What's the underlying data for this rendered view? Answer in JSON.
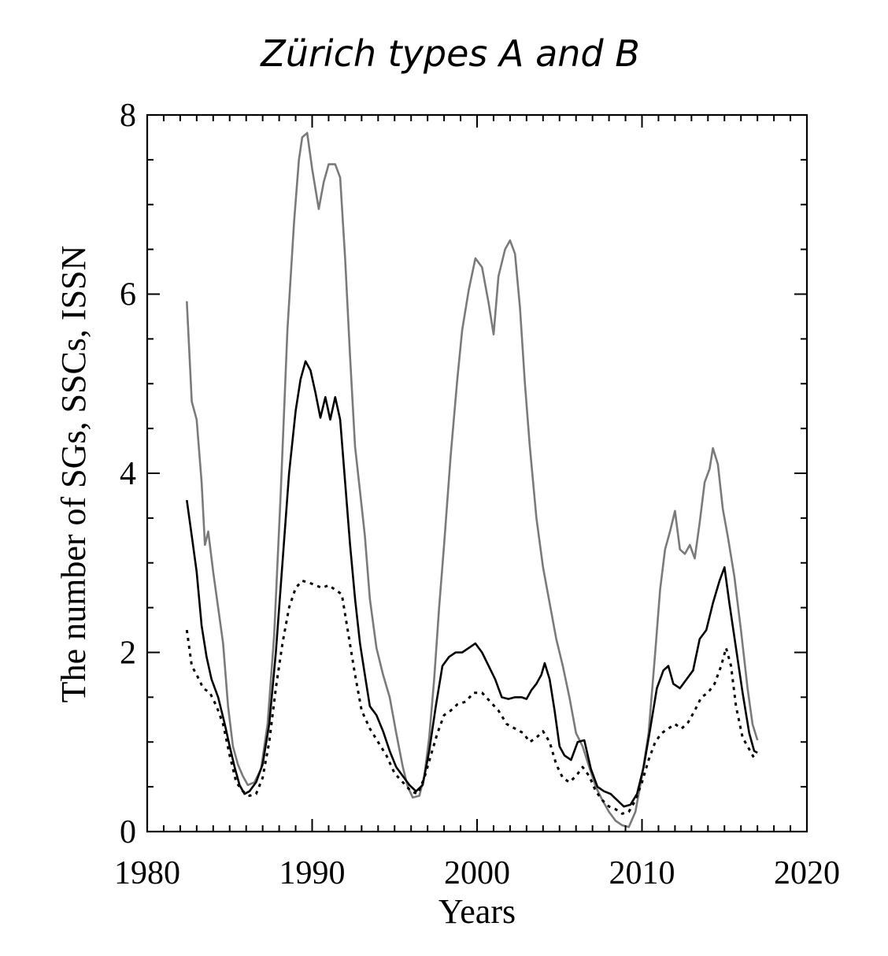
{
  "chart_data": {
    "type": "line",
    "title": "Zürich types A and B",
    "xlabel": "Years",
    "ylabel": "The number of SGs, SSCs, ISSN",
    "xlim": [
      1980,
      2020
    ],
    "ylim": [
      0,
      8
    ],
    "x_ticks": [
      "1980",
      "1990",
      "2000",
      "2010",
      "2020"
    ],
    "y_ticks": [
      "0",
      "2",
      "4",
      "6",
      "8"
    ],
    "grid": false,
    "legend": "none",
    "series": [
      {
        "style": "gray-solid",
        "color": "#7a7a7a",
        "points": [
          [
            1982.4,
            5.92
          ],
          [
            1982.7,
            4.8
          ],
          [
            1983.0,
            4.6
          ],
          [
            1983.3,
            3.9
          ],
          [
            1983.5,
            3.2
          ],
          [
            1983.7,
            3.35
          ],
          [
            1984.0,
            2.9
          ],
          [
            1984.3,
            2.5
          ],
          [
            1984.6,
            2.1
          ],
          [
            1984.9,
            1.4
          ],
          [
            1985.2,
            0.95
          ],
          [
            1985.5,
            0.75
          ],
          [
            1985.8,
            0.62
          ],
          [
            1986.1,
            0.52
          ],
          [
            1986.5,
            0.55
          ],
          [
            1986.9,
            0.7
          ],
          [
            1987.3,
            1.2
          ],
          [
            1987.7,
            2.2
          ],
          [
            1988.1,
            3.8
          ],
          [
            1988.5,
            5.6
          ],
          [
            1988.9,
            6.8
          ],
          [
            1989.2,
            7.5
          ],
          [
            1989.4,
            7.75
          ],
          [
            1989.7,
            7.8
          ],
          [
            1990.0,
            7.4
          ],
          [
            1990.4,
            6.95
          ],
          [
            1990.7,
            7.25
          ],
          [
            1991.0,
            7.45
          ],
          [
            1991.4,
            7.45
          ],
          [
            1991.7,
            7.3
          ],
          [
            1992.0,
            6.4
          ],
          [
            1992.3,
            5.3
          ],
          [
            1992.6,
            4.3
          ],
          [
            1992.9,
            3.8
          ],
          [
            1993.2,
            3.3
          ],
          [
            1993.5,
            2.6
          ],
          [
            1993.9,
            2.05
          ],
          [
            1994.3,
            1.75
          ],
          [
            1994.7,
            1.5
          ],
          [
            1995.1,
            1.1
          ],
          [
            1995.5,
            0.72
          ],
          [
            1995.8,
            0.5
          ],
          [
            1996.1,
            0.38
          ],
          [
            1996.5,
            0.4
          ],
          [
            1996.8,
            0.62
          ],
          [
            1997.1,
            1.05
          ],
          [
            1997.4,
            1.7
          ],
          [
            1997.7,
            2.5
          ],
          [
            1998.0,
            3.2
          ],
          [
            1998.4,
            4.2
          ],
          [
            1998.8,
            5.05
          ],
          [
            1999.1,
            5.6
          ],
          [
            1999.5,
            6.05
          ],
          [
            1999.9,
            6.4
          ],
          [
            2000.3,
            6.3
          ],
          [
            2000.7,
            5.9
          ],
          [
            2001.0,
            5.55
          ],
          [
            2001.3,
            6.2
          ],
          [
            2001.7,
            6.5
          ],
          [
            2002.0,
            6.6
          ],
          [
            2002.3,
            6.45
          ],
          [
            2002.6,
            5.85
          ],
          [
            2002.9,
            5.0
          ],
          [
            2003.2,
            4.3
          ],
          [
            2003.6,
            3.5
          ],
          [
            2004.0,
            2.95
          ],
          [
            2004.4,
            2.55
          ],
          [
            2004.8,
            2.15
          ],
          [
            2005.2,
            1.85
          ],
          [
            2005.6,
            1.5
          ],
          [
            2006.0,
            1.1
          ],
          [
            2006.4,
            0.95
          ],
          [
            2006.8,
            0.72
          ],
          [
            2007.2,
            0.5
          ],
          [
            2007.6,
            0.35
          ],
          [
            2008.0,
            0.22
          ],
          [
            2008.4,
            0.12
          ],
          [
            2008.8,
            0.07
          ],
          [
            2009.2,
            0.05
          ],
          [
            2009.6,
            0.22
          ],
          [
            2010.0,
            0.62
          ],
          [
            2010.4,
            1.1
          ],
          [
            2010.8,
            2.0
          ],
          [
            2011.1,
            2.7
          ],
          [
            2011.4,
            3.15
          ],
          [
            2011.7,
            3.35
          ],
          [
            2012.0,
            3.58
          ],
          [
            2012.3,
            3.15
          ],
          [
            2012.6,
            3.1
          ],
          [
            2012.9,
            3.2
          ],
          [
            2013.2,
            3.05
          ],
          [
            2013.5,
            3.45
          ],
          [
            2013.8,
            3.9
          ],
          [
            2014.1,
            4.05
          ],
          [
            2014.3,
            4.28
          ],
          [
            2014.6,
            4.1
          ],
          [
            2014.9,
            3.6
          ],
          [
            2015.2,
            3.3
          ],
          [
            2015.6,
            2.85
          ],
          [
            2016.0,
            2.25
          ],
          [
            2016.4,
            1.6
          ],
          [
            2016.7,
            1.2
          ],
          [
            2017.0,
            1.02
          ]
        ]
      },
      {
        "style": "black-solid",
        "color": "#000000",
        "points": [
          [
            1982.4,
            3.7
          ],
          [
            1982.7,
            3.3
          ],
          [
            1983.0,
            2.9
          ],
          [
            1983.3,
            2.3
          ],
          [
            1983.6,
            1.95
          ],
          [
            1983.9,
            1.7
          ],
          [
            1984.3,
            1.5
          ],
          [
            1984.7,
            1.2
          ],
          [
            1985.0,
            0.95
          ],
          [
            1985.3,
            0.72
          ],
          [
            1985.6,
            0.52
          ],
          [
            1985.9,
            0.42
          ],
          [
            1986.2,
            0.45
          ],
          [
            1986.6,
            0.55
          ],
          [
            1987.0,
            0.75
          ],
          [
            1987.4,
            1.2
          ],
          [
            1987.8,
            2.0
          ],
          [
            1988.2,
            3.0
          ],
          [
            1988.6,
            4.0
          ],
          [
            1989.0,
            4.7
          ],
          [
            1989.3,
            5.05
          ],
          [
            1989.6,
            5.25
          ],
          [
            1989.9,
            5.15
          ],
          [
            1990.2,
            4.9
          ],
          [
            1990.5,
            4.62
          ],
          [
            1990.8,
            4.85
          ],
          [
            1991.1,
            4.6
          ],
          [
            1991.4,
            4.85
          ],
          [
            1991.7,
            4.6
          ],
          [
            1992.0,
            3.9
          ],
          [
            1992.3,
            3.2
          ],
          [
            1992.6,
            2.6
          ],
          [
            1992.9,
            2.1
          ],
          [
            1993.2,
            1.75
          ],
          [
            1993.5,
            1.4
          ],
          [
            1993.9,
            1.3
          ],
          [
            1994.3,
            1.12
          ],
          [
            1994.7,
            0.9
          ],
          [
            1995.1,
            0.72
          ],
          [
            1995.5,
            0.62
          ],
          [
            1995.9,
            0.52
          ],
          [
            1996.3,
            0.45
          ],
          [
            1996.7,
            0.52
          ],
          [
            1997.1,
            0.9
          ],
          [
            1997.5,
            1.4
          ],
          [
            1997.9,
            1.85
          ],
          [
            1998.3,
            1.95
          ],
          [
            1998.7,
            2.0
          ],
          [
            1999.1,
            2.0
          ],
          [
            1999.5,
            2.05
          ],
          [
            1999.9,
            2.1
          ],
          [
            2000.3,
            2.0
          ],
          [
            2000.7,
            1.85
          ],
          [
            2001.1,
            1.7
          ],
          [
            2001.5,
            1.5
          ],
          [
            2001.9,
            1.48
          ],
          [
            2002.3,
            1.5
          ],
          [
            2002.7,
            1.5
          ],
          [
            2003.0,
            1.48
          ],
          [
            2003.3,
            1.58
          ],
          [
            2003.6,
            1.65
          ],
          [
            2003.9,
            1.75
          ],
          [
            2004.1,
            1.88
          ],
          [
            2004.4,
            1.7
          ],
          [
            2004.7,
            1.35
          ],
          [
            2005.0,
            0.95
          ],
          [
            2005.3,
            0.85
          ],
          [
            2005.7,
            0.8
          ],
          [
            2006.1,
            1.0
          ],
          [
            2006.5,
            1.02
          ],
          [
            2006.9,
            0.7
          ],
          [
            2007.3,
            0.5
          ],
          [
            2007.7,
            0.45
          ],
          [
            2008.1,
            0.42
          ],
          [
            2008.5,
            0.35
          ],
          [
            2008.9,
            0.28
          ],
          [
            2009.3,
            0.3
          ],
          [
            2009.7,
            0.42
          ],
          [
            2010.1,
            0.72
          ],
          [
            2010.5,
            1.15
          ],
          [
            2010.9,
            1.6
          ],
          [
            2011.3,
            1.8
          ],
          [
            2011.6,
            1.85
          ],
          [
            2011.9,
            1.65
          ],
          [
            2012.3,
            1.6
          ],
          [
            2012.7,
            1.7
          ],
          [
            2013.1,
            1.8
          ],
          [
            2013.5,
            2.15
          ],
          [
            2013.9,
            2.25
          ],
          [
            2014.3,
            2.55
          ],
          [
            2014.7,
            2.8
          ],
          [
            2015.0,
            2.95
          ],
          [
            2015.3,
            2.55
          ],
          [
            2015.7,
            2.05
          ],
          [
            2016.1,
            1.55
          ],
          [
            2016.5,
            1.1
          ],
          [
            2016.8,
            0.9
          ],
          [
            2017.0,
            0.88
          ]
        ]
      },
      {
        "style": "black-dotted",
        "color": "#000000",
        "points": [
          [
            1982.4,
            2.25
          ],
          [
            1982.7,
            1.85
          ],
          [
            1983.0,
            1.75
          ],
          [
            1983.4,
            1.6
          ],
          [
            1983.8,
            1.55
          ],
          [
            1984.2,
            1.4
          ],
          [
            1984.6,
            1.2
          ],
          [
            1985.0,
            0.85
          ],
          [
            1985.4,
            0.55
          ],
          [
            1985.8,
            0.45
          ],
          [
            1986.2,
            0.4
          ],
          [
            1986.6,
            0.42
          ],
          [
            1987.0,
            0.6
          ],
          [
            1987.4,
            1.0
          ],
          [
            1987.8,
            1.6
          ],
          [
            1988.2,
            2.1
          ],
          [
            1988.6,
            2.5
          ],
          [
            1989.0,
            2.72
          ],
          [
            1989.4,
            2.8
          ],
          [
            1989.8,
            2.78
          ],
          [
            1990.2,
            2.75
          ],
          [
            1990.6,
            2.72
          ],
          [
            1991.0,
            2.75
          ],
          [
            1991.4,
            2.7
          ],
          [
            1991.8,
            2.65
          ],
          [
            1992.2,
            2.2
          ],
          [
            1992.6,
            1.75
          ],
          [
            1993.0,
            1.35
          ],
          [
            1993.5,
            1.15
          ],
          [
            1994.0,
            1.0
          ],
          [
            1994.5,
            0.85
          ],
          [
            1995.0,
            0.65
          ],
          [
            1995.5,
            0.55
          ],
          [
            1996.0,
            0.45
          ],
          [
            1996.4,
            0.42
          ],
          [
            1996.8,
            0.6
          ],
          [
            1997.2,
            0.85
          ],
          [
            1997.6,
            1.1
          ],
          [
            1998.0,
            1.3
          ],
          [
            1998.4,
            1.35
          ],
          [
            1998.8,
            1.42
          ],
          [
            1999.3,
            1.45
          ],
          [
            1999.8,
            1.55
          ],
          [
            2000.3,
            1.55
          ],
          [
            2000.8,
            1.45
          ],
          [
            2001.3,
            1.35
          ],
          [
            2001.8,
            1.2
          ],
          [
            2002.3,
            1.15
          ],
          [
            2002.8,
            1.1
          ],
          [
            2003.2,
            1.0
          ],
          [
            2003.6,
            1.05
          ],
          [
            2004.0,
            1.12
          ],
          [
            2004.4,
            1.0
          ],
          [
            2004.8,
            0.75
          ],
          [
            2005.2,
            0.6
          ],
          [
            2005.6,
            0.55
          ],
          [
            2006.0,
            0.62
          ],
          [
            2006.4,
            0.72
          ],
          [
            2006.8,
            0.62
          ],
          [
            2007.2,
            0.45
          ],
          [
            2007.6,
            0.35
          ],
          [
            2008.0,
            0.28
          ],
          [
            2008.4,
            0.25
          ],
          [
            2008.8,
            0.2
          ],
          [
            2009.2,
            0.22
          ],
          [
            2009.6,
            0.35
          ],
          [
            2010.0,
            0.55
          ],
          [
            2010.4,
            0.8
          ],
          [
            2010.8,
            1.0
          ],
          [
            2011.2,
            1.1
          ],
          [
            2011.6,
            1.15
          ],
          [
            2012.0,
            1.2
          ],
          [
            2012.4,
            1.15
          ],
          [
            2012.8,
            1.22
          ],
          [
            2013.2,
            1.35
          ],
          [
            2013.6,
            1.5
          ],
          [
            2014.0,
            1.55
          ],
          [
            2014.4,
            1.65
          ],
          [
            2014.8,
            1.85
          ],
          [
            2015.1,
            2.05
          ],
          [
            2015.4,
            1.85
          ],
          [
            2015.7,
            1.4
          ],
          [
            2016.1,
            1.05
          ],
          [
            2016.5,
            0.92
          ],
          [
            2016.8,
            0.82
          ]
        ]
      }
    ]
  }
}
